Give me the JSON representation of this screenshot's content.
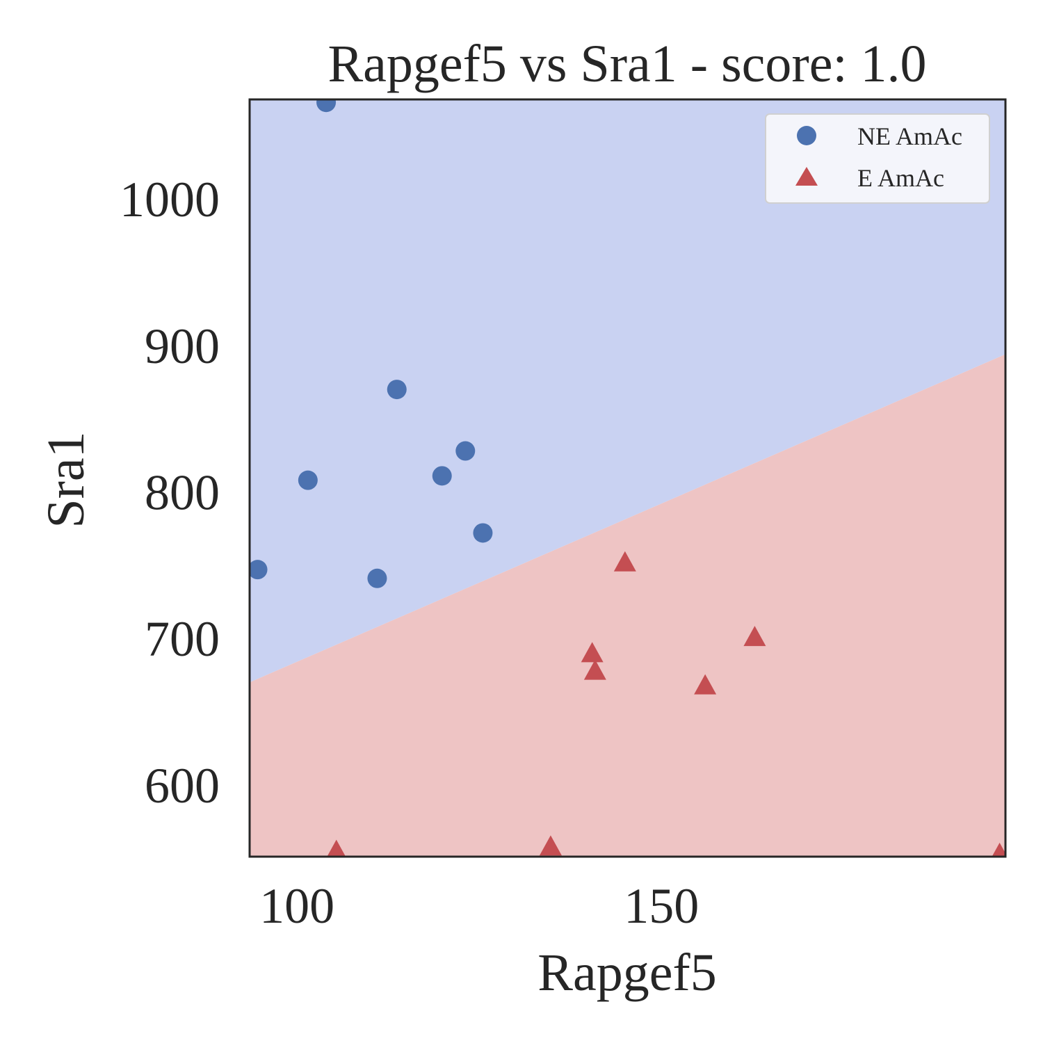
{
  "chart_data": {
    "type": "scatter",
    "title": "Rapgef5 vs Sra1 - score: 1.0",
    "xlabel": "Rapgef5",
    "ylabel": "Sra1",
    "xlim": [
      93.5,
      197.2
    ],
    "ylim": [
      551,
      1068
    ],
    "xticks": [
      100,
      150
    ],
    "yticks": [
      600,
      700,
      800,
      900,
      1000
    ],
    "xtick_labels": [
      "100",
      "150"
    ],
    "ytick_labels": [
      "600",
      "700",
      "800",
      "900",
      "1000"
    ],
    "grid": false,
    "legend_position": "top-right",
    "decision_boundary": {
      "points": [
        [
          93.5,
          670
        ],
        [
          197.2,
          894
        ]
      ],
      "above_class": "NE AmAc",
      "below_class": "E AmAc",
      "above_color": "#c9d2f2",
      "below_color": "#eec4c4"
    },
    "series": [
      {
        "name": "NE AmAc",
        "marker": "circle",
        "color": "#4c72b0",
        "points": [
          [
            104.0,
            1066
          ],
          [
            101.5,
            808
          ],
          [
            113.7,
            870
          ],
          [
            111.0,
            741
          ],
          [
            119.9,
            811
          ],
          [
            123.1,
            828
          ],
          [
            125.5,
            772
          ],
          [
            94.6,
            747
          ]
        ]
      },
      {
        "name": "E AmAc",
        "marker": "triangle",
        "color": "#c44e52",
        "points": [
          [
            145.0,
            751
          ],
          [
            140.5,
            689
          ],
          [
            140.9,
            677
          ],
          [
            156.0,
            667
          ],
          [
            162.8,
            700
          ],
          [
            105.4,
            554
          ],
          [
            134.8,
            557
          ],
          [
            196.4,
            552
          ]
        ]
      }
    ]
  }
}
